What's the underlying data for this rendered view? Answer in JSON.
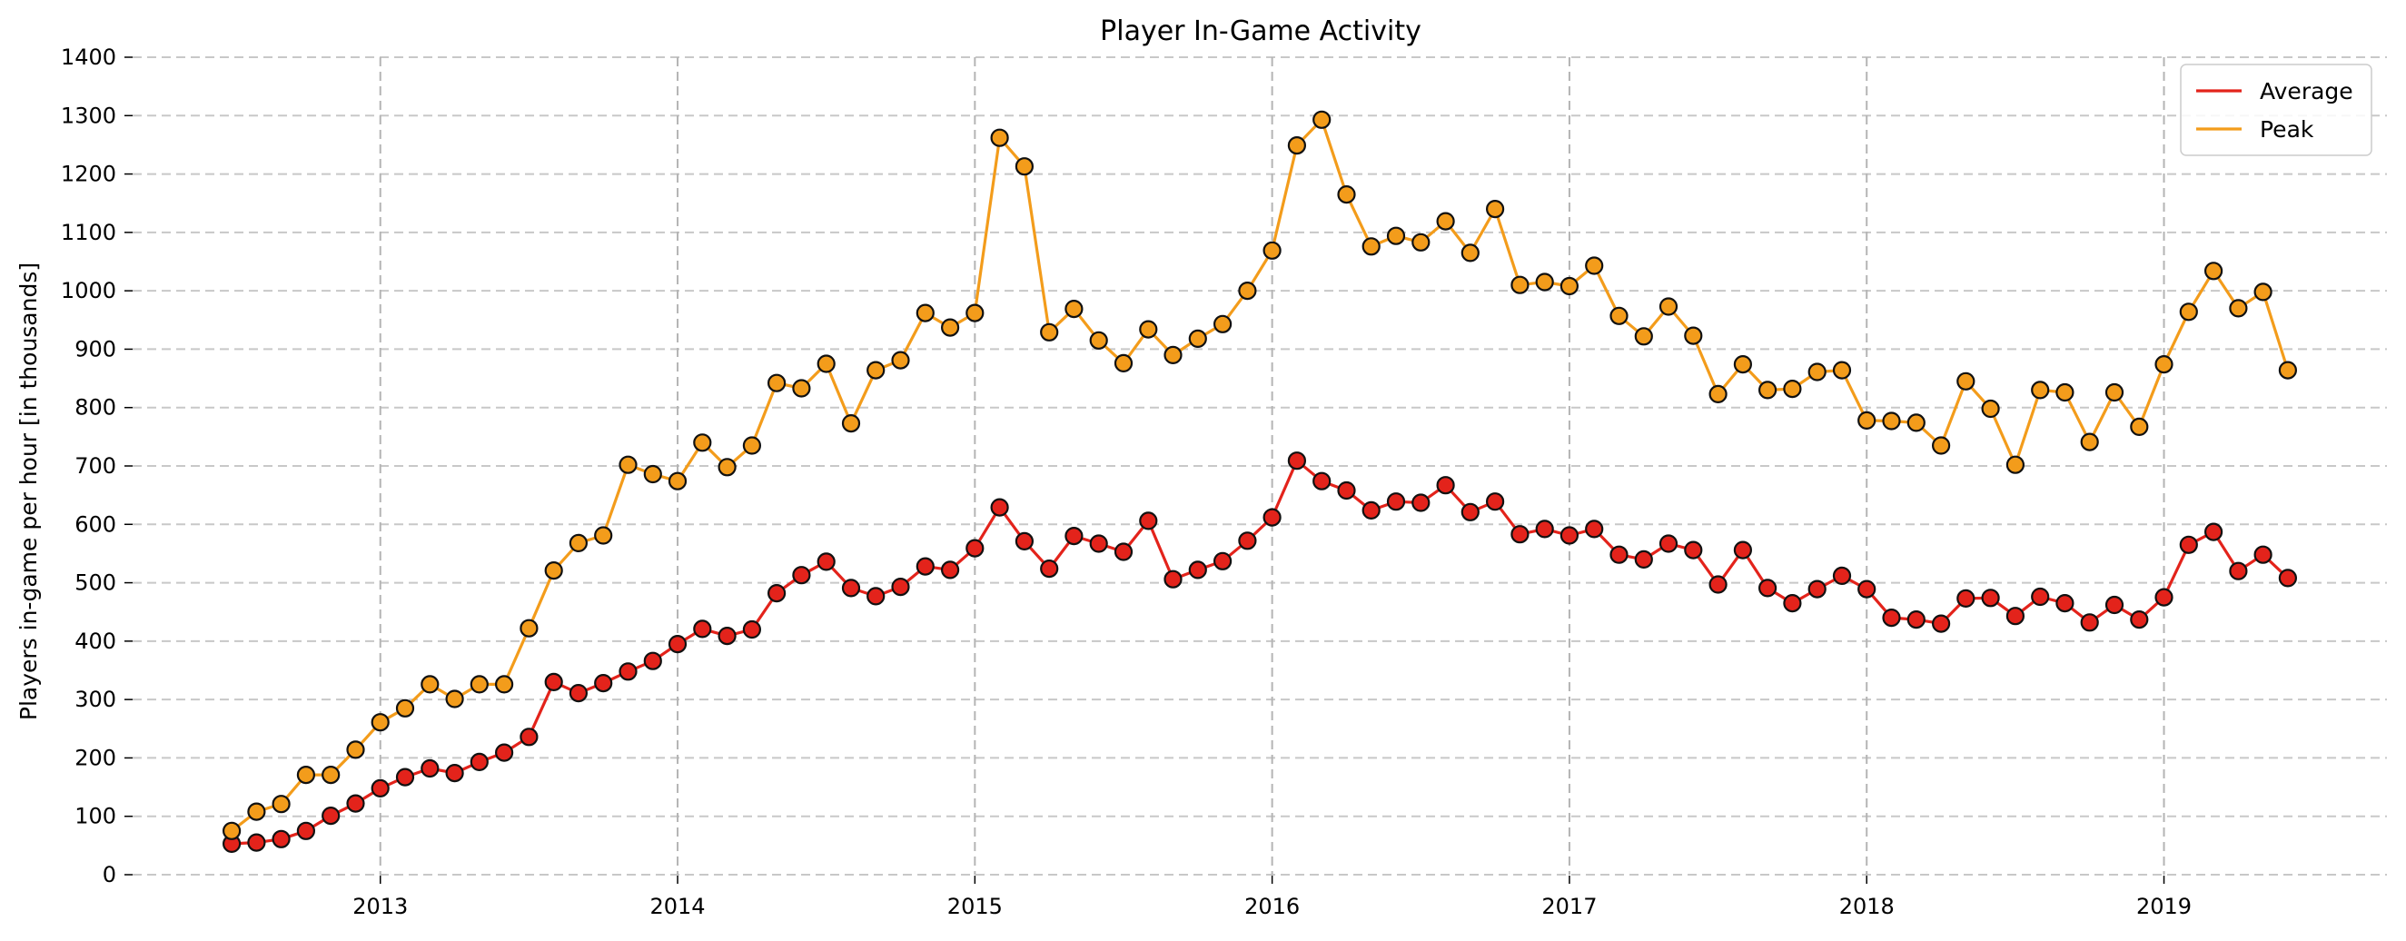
{
  "chart_data": {
    "type": "line",
    "title": "Player In-Game Activity",
    "xlabel": "",
    "ylabel": "Players in-game per hour [in thousands]",
    "ylim": [
      0,
      1400
    ],
    "yticks": [
      0,
      100,
      200,
      300,
      400,
      500,
      600,
      700,
      800,
      900,
      1000,
      1100,
      1200,
      1300,
      1400
    ],
    "xlim": [
      "2012-03",
      "2019-10"
    ],
    "xticks": [
      "2013",
      "2014",
      "2015",
      "2016",
      "2017",
      "2018",
      "2019"
    ],
    "grid": true,
    "legend_position": "top-right",
    "x": [
      "2012-07",
      "2012-08",
      "2012-09",
      "2012-10",
      "2012-11",
      "2012-12",
      "2013-01",
      "2013-02",
      "2013-03",
      "2013-04",
      "2013-05",
      "2013-06",
      "2013-07",
      "2013-08",
      "2013-09",
      "2013-10",
      "2013-11",
      "2013-12",
      "2014-01",
      "2014-02",
      "2014-03",
      "2014-04",
      "2014-05",
      "2014-06",
      "2014-07",
      "2014-08",
      "2014-09",
      "2014-10",
      "2014-11",
      "2014-12",
      "2015-01",
      "2015-02",
      "2015-03",
      "2015-04",
      "2015-05",
      "2015-06",
      "2015-07",
      "2015-08",
      "2015-09",
      "2015-10",
      "2015-11",
      "2015-12",
      "2016-01",
      "2016-02",
      "2016-03",
      "2016-04",
      "2016-05",
      "2016-06",
      "2016-07",
      "2016-08",
      "2016-09",
      "2016-10",
      "2016-11",
      "2016-12",
      "2017-01",
      "2017-02",
      "2017-03",
      "2017-04",
      "2017-05",
      "2017-06",
      "2017-07",
      "2017-08",
      "2017-09",
      "2017-10",
      "2017-11",
      "2017-12",
      "2018-01",
      "2018-02",
      "2018-03",
      "2018-04",
      "2018-05",
      "2018-06",
      "2018-07",
      "2018-08",
      "2018-09",
      "2018-10",
      "2018-11",
      "2018-12",
      "2019-01",
      "2019-02",
      "2019-03",
      "2019-04",
      "2019-05",
      "2019-06"
    ],
    "series": [
      {
        "name": "Average",
        "color": "#e3231b",
        "values": [
          53,
          55,
          61,
          75,
          101,
          122,
          148,
          167,
          182,
          174,
          193,
          209,
          236,
          330,
          311,
          328,
          348,
          366,
          395,
          421,
          409,
          420,
          482,
          513,
          536,
          491,
          477,
          493,
          528,
          522,
          559,
          629,
          571,
          524,
          580,
          567,
          553,
          606,
          506,
          522,
          537,
          572,
          612,
          709,
          674,
          658,
          624,
          639,
          637,
          667,
          621,
          639,
          583,
          592,
          581,
          592,
          548,
          540,
          567,
          556,
          497,
          556,
          491,
          465,
          489,
          512,
          489,
          440,
          437,
          430,
          473,
          474,
          443,
          476,
          465,
          432,
          462,
          437,
          475,
          565,
          587,
          520,
          548,
          508
        ]
      },
      {
        "name": "Peak",
        "color": "#f39c1b",
        "values": [
          75,
          108,
          121,
          171,
          171,
          214,
          261,
          285,
          326,
          301,
          326,
          326,
          422,
          521,
          568,
          581,
          702,
          686,
          674,
          740,
          698,
          735,
          842,
          833,
          875,
          773,
          864,
          881,
          962,
          937,
          962,
          1262,
          1213,
          929,
          969,
          915,
          876,
          934,
          890,
          918,
          943,
          1000,
          1069,
          1249,
          1293,
          1165,
          1076,
          1094,
          1083,
          1119,
          1065,
          1140,
          1010,
          1015,
          1008,
          1043,
          957,
          922,
          973,
          923,
          823,
          874,
          830,
          832,
          861,
          864,
          778,
          777,
          774,
          735,
          845,
          798,
          702,
          830,
          826,
          741,
          826,
          767,
          874,
          964,
          1034,
          970,
          998,
          864
        ]
      }
    ]
  }
}
